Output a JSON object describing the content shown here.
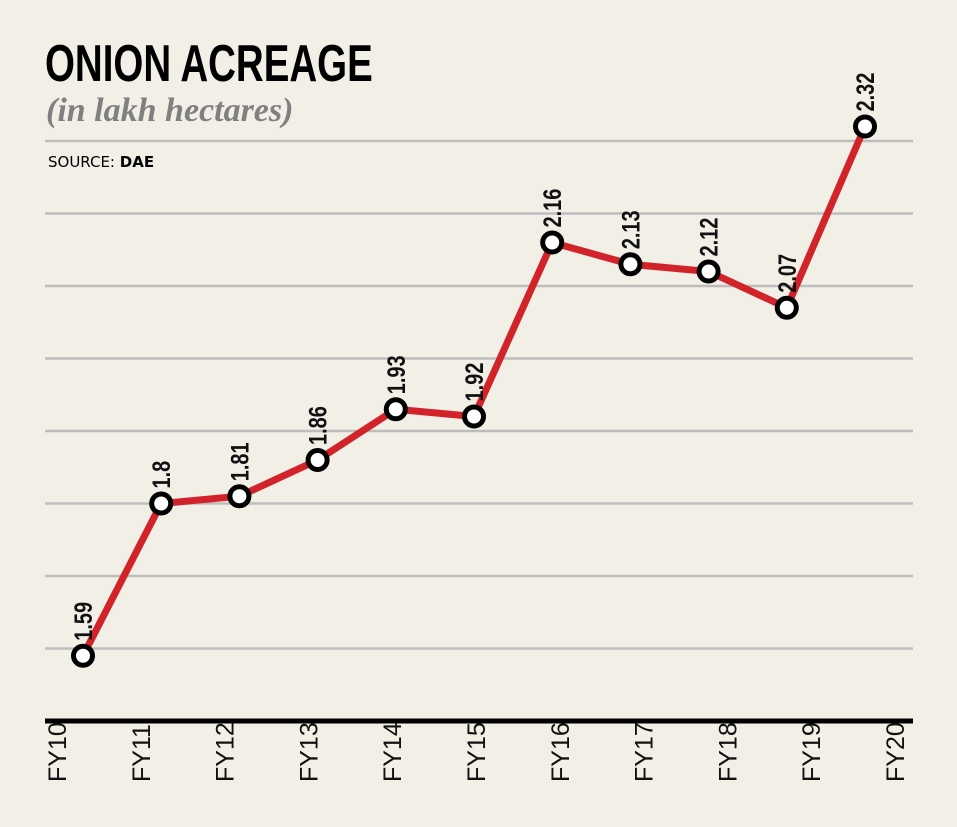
{
  "chart_data": {
    "type": "line",
    "title": "ONION ACREAGE",
    "subtitle": "(in lakh hectares)",
    "source_label": "SOURCE:",
    "source": "DAE",
    "categories": [
      "FY10",
      "FY11",
      "FY12",
      "FY13",
      "FY14",
      "FY15",
      "FY16",
      "FY17",
      "FY18",
      "FY19",
      "FY20"
    ],
    "values": [
      1.59,
      1.8,
      1.81,
      1.86,
      1.93,
      1.92,
      2.16,
      2.13,
      2.12,
      2.07,
      2.32
    ],
    "value_labels": [
      "1.59",
      "1.8",
      "1.81",
      "1.86",
      "1.93",
      "1.92",
      "2.16",
      "2.13",
      "2.12",
      "2.07",
      "2.32"
    ],
    "ylim": [
      1.5,
      2.3
    ],
    "grid_step": 0.1,
    "grid": true,
    "xlabel": "",
    "ylabel": "",
    "colors": {
      "line": "#d2232a",
      "grid": "#bdbdbd",
      "background": "#f2efe7",
      "axis": "#000000"
    }
  }
}
